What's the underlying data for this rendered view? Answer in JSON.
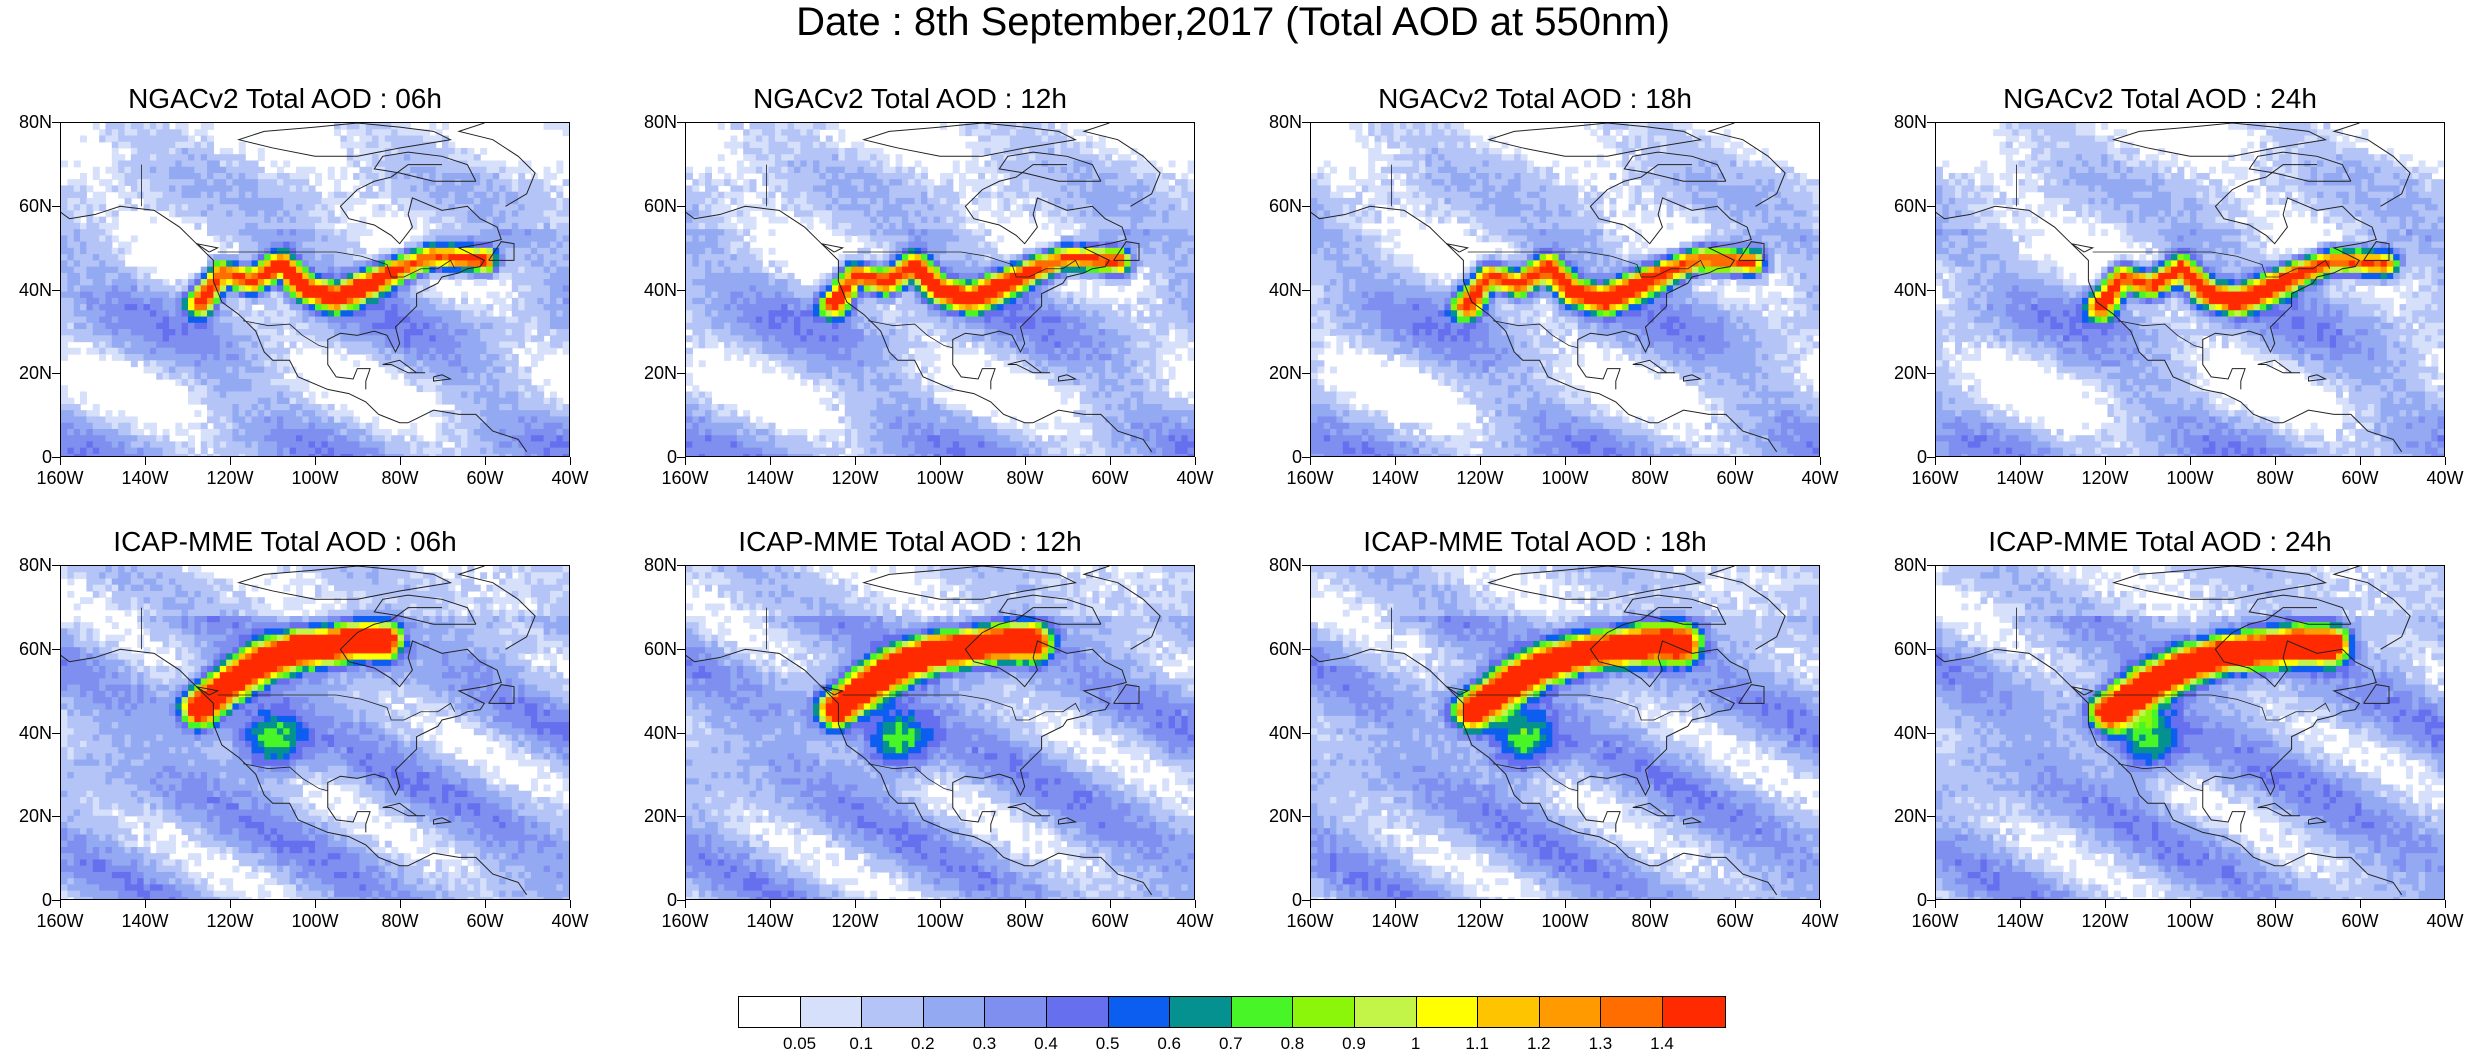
{
  "title": "Date : 8th September,2017 (Total AOD at 550nm)",
  "panels": [
    {
      "title": "NGACv2 Total AOD : 06h",
      "model": "ngac",
      "hour": 6
    },
    {
      "title": "NGACv2 Total AOD : 12h",
      "model": "ngac",
      "hour": 12
    },
    {
      "title": "NGACv2 Total AOD : 18h",
      "model": "ngac",
      "hour": 18
    },
    {
      "title": "NGACv2 Total AOD : 24h",
      "model": "ngac",
      "hour": 24
    },
    {
      "title": "ICAP-MME Total AOD : 06h",
      "model": "icap",
      "hour": 6
    },
    {
      "title": "ICAP-MME Total AOD : 12h",
      "model": "icap",
      "hour": 12
    },
    {
      "title": "ICAP-MME Total AOD : 18h",
      "model": "icap",
      "hour": 18
    },
    {
      "title": "ICAP-MME Total AOD : 24h",
      "model": "icap",
      "hour": 24
    }
  ],
  "axes": {
    "lat_labels": [
      "80N",
      "60N",
      "40N",
      "20N",
      "0"
    ],
    "lon_labels": [
      "160W",
      "140W",
      "120W",
      "100W",
      "80W",
      "60W",
      "40W"
    ],
    "lat_range": [
      0,
      80
    ],
    "lon_range": [
      -160,
      -40
    ]
  },
  "colorbar": {
    "labels": [
      "0.05",
      "0.1",
      "0.2",
      "0.3",
      "0.4",
      "0.5",
      "0.6",
      "0.7",
      "0.8",
      "0.9",
      "1",
      "1.1",
      "1.2",
      "1.3",
      "1.4"
    ],
    "colors": [
      "#ffffff",
      "#d6e0fb",
      "#b4c4f6",
      "#93aaf3",
      "#7f8ff0",
      "#6670ee",
      "#0c5ef0",
      "#069191",
      "#48f526",
      "#8bf50a",
      "#c2f548",
      "#ffff00",
      "#ffc400",
      "#ff9a00",
      "#ff6c00",
      "#ff2a00"
    ]
  }
}
